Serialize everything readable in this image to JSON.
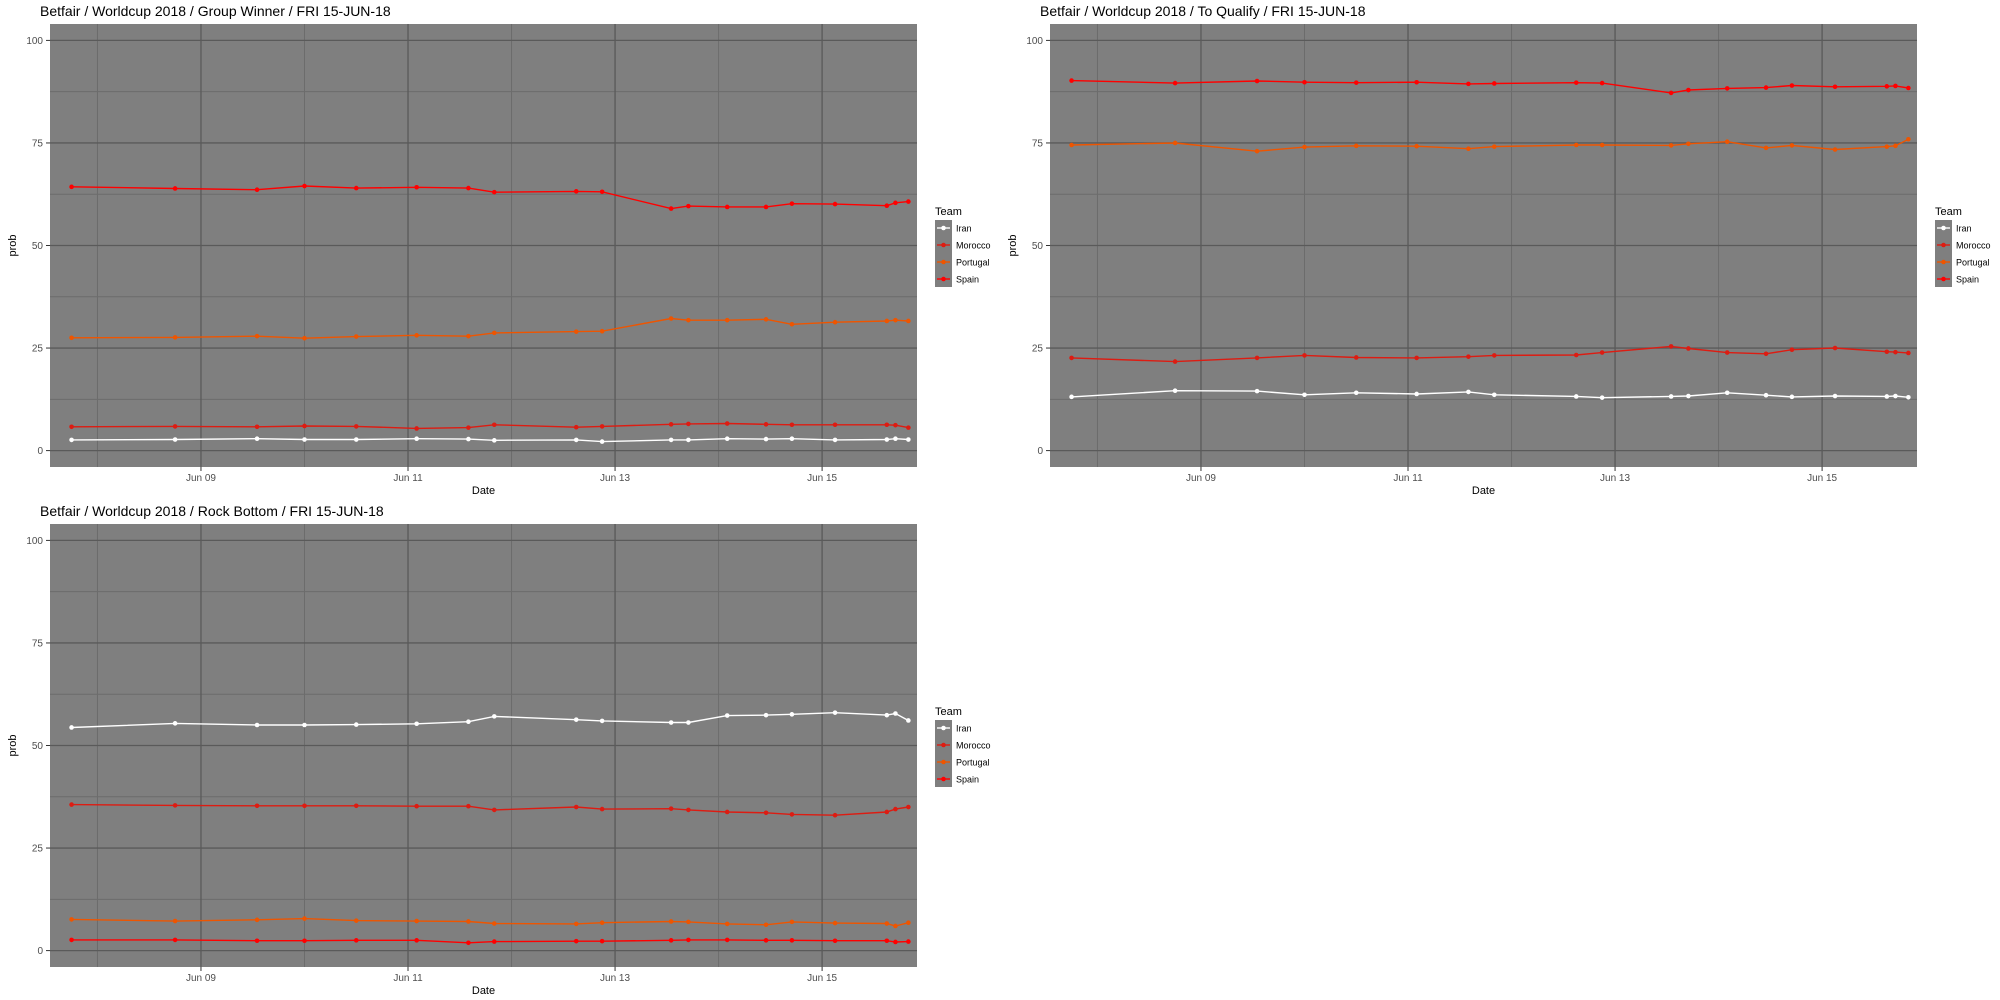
{
  "legend_title": "Team",
  "chart_data": [
    {
      "type": "line",
      "title": "Betfair / Worldcup 2018 / Group Winner / FRI 15-JUN-18",
      "xlabel": "Date",
      "ylabel": "prob",
      "xlim": [
        "2018-06-07T13:00",
        "2018-06-15T22:00"
      ],
      "ylim": [
        -4,
        104
      ],
      "x_ticks": [
        "2018-06-09",
        "2018-06-11",
        "2018-06-13",
        "2018-06-15"
      ],
      "x_tick_labels": [
        "Jun 09",
        "Jun 11",
        "Jun 13",
        "Jun 15"
      ],
      "y_ticks": [
        0,
        25,
        50,
        75,
        100
      ],
      "grid": true,
      "legend": "right",
      "x": [
        "2018-06-07T18:00",
        "2018-06-08T18:00",
        "2018-06-09T13:00",
        "2018-06-10T00:00",
        "2018-06-10T12:00",
        "2018-06-11T02:00",
        "2018-06-11T14:00",
        "2018-06-11T20:00",
        "2018-06-12T15:00",
        "2018-06-12T21:00",
        "2018-06-13T13:00",
        "2018-06-13T17:00",
        "2018-06-14T02:00",
        "2018-06-14T11:00",
        "2018-06-14T17:00",
        "2018-06-15T03:00",
        "2018-06-15T15:00",
        "2018-06-15T17:00",
        "2018-06-15T20:00"
      ],
      "series": [
        {
          "name": "Iran",
          "color": "#ffffff",
          "values": [
            2.6,
            2.7,
            2.9,
            2.7,
            2.7,
            2.9,
            2.8,
            2.5,
            2.6,
            2.2,
            2.6,
            2.6,
            2.9,
            2.8,
            2.9,
            2.6,
            2.7,
            2.9,
            2.7
          ]
        },
        {
          "name": "Morocco",
          "color": "#dd1c12",
          "values": [
            5.8,
            5.9,
            5.8,
            6.0,
            5.9,
            5.4,
            5.6,
            6.3,
            5.7,
            5.9,
            6.4,
            6.5,
            6.6,
            6.4,
            6.3,
            6.3,
            6.3,
            6.2,
            5.6
          ]
        },
        {
          "name": "Portugal",
          "color": "#ee5500",
          "values": [
            27.5,
            27.6,
            27.9,
            27.4,
            27.8,
            28.1,
            27.9,
            28.7,
            29.0,
            29.1,
            32.2,
            31.8,
            31.8,
            32.0,
            30.8,
            31.3,
            31.6,
            31.8,
            31.6
          ]
        },
        {
          "name": "Spain",
          "color": "#ff0000",
          "values": [
            64.3,
            63.9,
            63.6,
            64.5,
            64.0,
            64.2,
            64.0,
            63.0,
            63.2,
            63.1,
            59.0,
            59.6,
            59.4,
            59.4,
            60.2,
            60.1,
            59.7,
            60.4,
            60.7
          ]
        }
      ]
    },
    {
      "type": "line",
      "title": "Betfair / Worldcup 2018 / To Qualify / FRI 15-JUN-18",
      "xlabel": "Date",
      "ylabel": "prob",
      "xlim": [
        "2018-06-07T13:00",
        "2018-06-15T22:00"
      ],
      "ylim": [
        -4,
        104
      ],
      "x_ticks": [
        "2018-06-09",
        "2018-06-11",
        "2018-06-13",
        "2018-06-15"
      ],
      "x_tick_labels": [
        "Jun 09",
        "Jun 11",
        "Jun 13",
        "Jun 15"
      ],
      "y_ticks": [
        0,
        25,
        50,
        75,
        100
      ],
      "grid": true,
      "legend": "right",
      "x": [
        "2018-06-07T18:00",
        "2018-06-08T18:00",
        "2018-06-09T13:00",
        "2018-06-10T00:00",
        "2018-06-10T12:00",
        "2018-06-11T02:00",
        "2018-06-11T14:00",
        "2018-06-11T20:00",
        "2018-06-12T15:00",
        "2018-06-12T21:00",
        "2018-06-13T13:00",
        "2018-06-13T17:00",
        "2018-06-14T02:00",
        "2018-06-14T11:00",
        "2018-06-14T17:00",
        "2018-06-15T03:00",
        "2018-06-15T15:00",
        "2018-06-15T17:00",
        "2018-06-15T20:00"
      ],
      "series": [
        {
          "name": "Iran",
          "color": "#ffffff",
          "values": [
            13.1,
            14.6,
            14.5,
            13.6,
            14.1,
            13.8,
            14.3,
            13.6,
            13.2,
            12.9,
            13.2,
            13.3,
            14.1,
            13.5,
            13.1,
            13.3,
            13.2,
            13.3,
            13.0
          ]
        },
        {
          "name": "Morocco",
          "color": "#dd1c12",
          "values": [
            22.6,
            21.7,
            22.6,
            23.2,
            22.7,
            22.6,
            22.9,
            23.2,
            23.3,
            23.9,
            25.4,
            24.9,
            23.9,
            23.6,
            24.6,
            25.0,
            24.1,
            24.0,
            23.8
          ]
        },
        {
          "name": "Portugal",
          "color": "#ee5500",
          "values": [
            74.5,
            75.0,
            73.0,
            74.0,
            74.3,
            74.2,
            73.6,
            74.1,
            74.5,
            74.5,
            74.4,
            74.8,
            75.3,
            73.8,
            74.4,
            73.4,
            74.1,
            74.3,
            75.9
          ]
        },
        {
          "name": "Spain",
          "color": "#ff0000",
          "values": [
            90.2,
            89.6,
            90.1,
            89.8,
            89.7,
            89.8,
            89.4,
            89.5,
            89.7,
            89.6,
            87.2,
            87.9,
            88.3,
            88.5,
            89.0,
            88.7,
            88.8,
            88.9,
            88.4
          ]
        }
      ]
    },
    {
      "type": "line",
      "title": "Betfair / Worldcup 2018 / Rock Bottom / FRI 15-JUN-18",
      "xlabel": "Date",
      "ylabel": "prob",
      "xlim": [
        "2018-06-07T13:00",
        "2018-06-15T22:00"
      ],
      "ylim": [
        -4,
        104
      ],
      "x_ticks": [
        "2018-06-09",
        "2018-06-11",
        "2018-06-13",
        "2018-06-15"
      ],
      "x_tick_labels": [
        "Jun 09",
        "Jun 11",
        "Jun 13",
        "Jun 15"
      ],
      "y_ticks": [
        0,
        25,
        50,
        75,
        100
      ],
      "grid": true,
      "legend": "right",
      "x": [
        "2018-06-07T18:00",
        "2018-06-08T18:00",
        "2018-06-09T13:00",
        "2018-06-10T00:00",
        "2018-06-10T12:00",
        "2018-06-11T02:00",
        "2018-06-11T14:00",
        "2018-06-11T20:00",
        "2018-06-12T15:00",
        "2018-06-12T21:00",
        "2018-06-13T13:00",
        "2018-06-13T17:00",
        "2018-06-14T02:00",
        "2018-06-14T11:00",
        "2018-06-14T17:00",
        "2018-06-15T03:00",
        "2018-06-15T15:00",
        "2018-06-15T17:00",
        "2018-06-15T20:00"
      ],
      "series": [
        {
          "name": "Iran",
          "color": "#ffffff",
          "values": [
            54.4,
            55.4,
            55.0,
            55.0,
            55.1,
            55.3,
            55.8,
            57.1,
            56.3,
            56.0,
            55.6,
            55.6,
            57.3,
            57.4,
            57.6,
            58.0,
            57.4,
            57.8,
            56.1
          ]
        },
        {
          "name": "Morocco",
          "color": "#dd1c12",
          "values": [
            35.6,
            35.4,
            35.3,
            35.3,
            35.3,
            35.2,
            35.2,
            34.3,
            35.0,
            34.5,
            34.6,
            34.3,
            33.8,
            33.6,
            33.2,
            33.0,
            33.8,
            34.5,
            35.0
          ]
        },
        {
          "name": "Portugal",
          "color": "#ee5500",
          "values": [
            7.6,
            7.2,
            7.5,
            7.8,
            7.3,
            7.2,
            7.1,
            6.6,
            6.5,
            6.8,
            7.1,
            7.0,
            6.5,
            6.3,
            7.0,
            6.7,
            6.6,
            6.0,
            6.8
          ]
        },
        {
          "name": "Spain",
          "color": "#ff0000",
          "values": [
            2.6,
            2.6,
            2.4,
            2.4,
            2.5,
            2.5,
            1.9,
            2.2,
            2.3,
            2.3,
            2.5,
            2.6,
            2.6,
            2.5,
            2.5,
            2.4,
            2.4,
            2.1,
            2.2
          ]
        }
      ]
    }
  ]
}
